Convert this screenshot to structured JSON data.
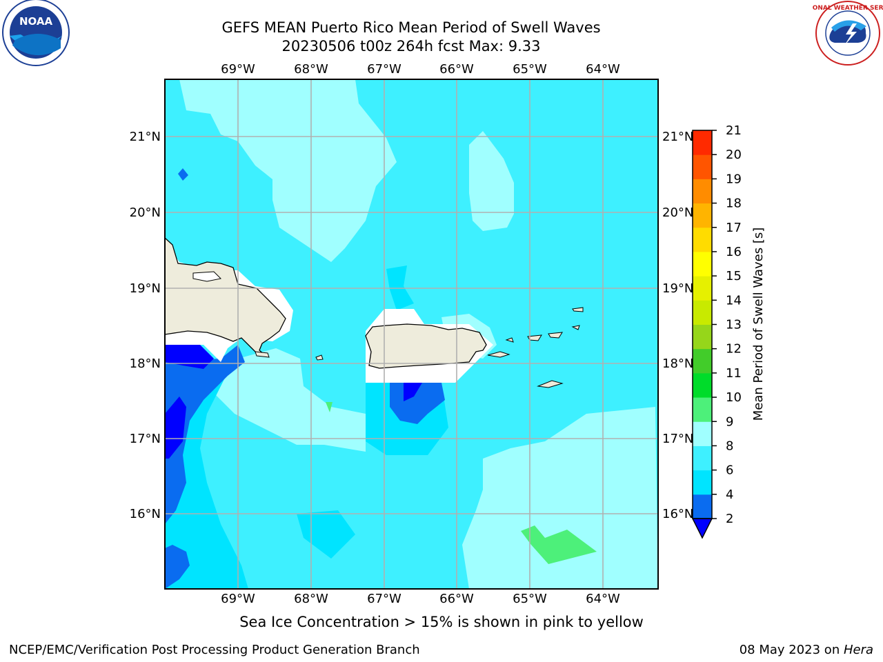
{
  "header": {
    "title": "GEFS MEAN Puerto Rico Mean Period of Swell Waves",
    "subtitle": "20230506 t00z 264h fcst   Max: 9.33"
  },
  "chart_data": {
    "type": "heatmap",
    "title": "GEFS MEAN Puerto Rico Mean Period of Swell Waves",
    "lon_range": [
      -70,
      -63.25
    ],
    "lat_range": [
      15,
      21.7
    ],
    "lon_ticks": [
      "69°W",
      "68°W",
      "67°W",
      "66°W",
      "65°W",
      "64°W"
    ],
    "lat_ticks": [
      "21°N",
      "20°N",
      "19°N",
      "18°N",
      "17°N",
      "16°N"
    ],
    "colorbar": {
      "label": "Mean Period of Swell Waves [s]",
      "ticks": [
        "2",
        "4",
        "6",
        "8",
        "9",
        "10",
        "11",
        "12",
        "13",
        "14",
        "15",
        "16",
        "17",
        "18",
        "19",
        "20",
        "21"
      ],
      "colors": [
        "#0a6cf0",
        "#00e4ff",
        "#3ef0ff",
        "#a0ffff",
        "#4df07a",
        "#00dc2a",
        "#42cc2a",
        "#96d61a",
        "#c8ea00",
        "#e6f000",
        "#ffff00",
        "#ffdc00",
        "#ffb400",
        "#ff8c00",
        "#ff5500",
        "#ff2a00",
        "#ff0000"
      ],
      "extend_low_color": "#0000ff"
    },
    "max_value": 9.33
  },
  "footnote": "Sea Ice Concentration > 15% is shown in pink to yellow",
  "footer": {
    "org": "NCEP/EMC/Verification Post Processing Product Generation Branch",
    "date": "08 May 2023 on ",
    "machine": "Hera"
  },
  "logos": {
    "left": "NOAA",
    "right_ring": "NATIONAL WEATHER SERVICE"
  }
}
